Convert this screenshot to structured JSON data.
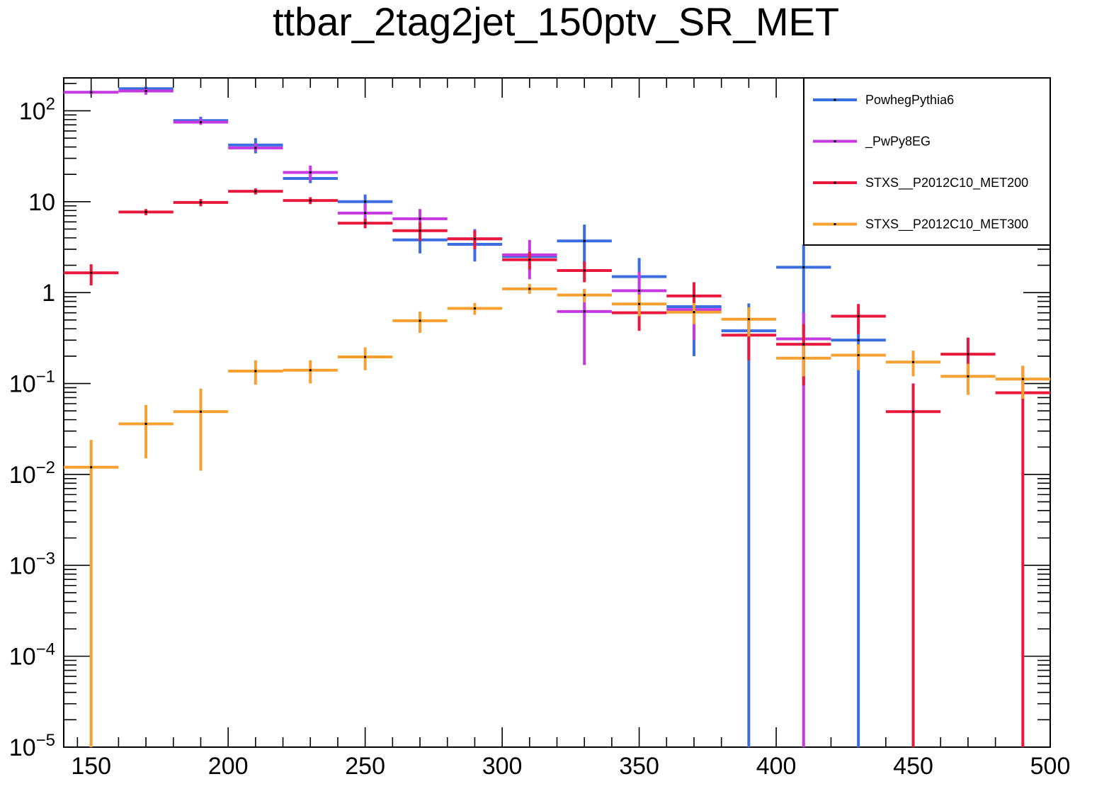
{
  "chart_data": {
    "type": "line",
    "title": "ttbar_2tag2jet_150ptv_SR_MET",
    "xlabel": "",
    "ylabel": "",
    "xlim": [
      140,
      500
    ],
    "ylim": [
      1e-05,
      230
    ],
    "ylog": true,
    "grid": false,
    "legend_position": "top-right",
    "bins": [
      [
        140,
        160
      ],
      [
        160,
        180
      ],
      [
        180,
        200
      ],
      [
        200,
        220
      ],
      [
        220,
        240
      ],
      [
        240,
        260
      ],
      [
        260,
        280
      ],
      [
        280,
        300
      ],
      [
        300,
        320
      ],
      [
        320,
        340
      ],
      [
        340,
        360
      ],
      [
        360,
        380
      ],
      [
        380,
        400
      ],
      [
        400,
        420
      ],
      [
        420,
        440
      ],
      [
        440,
        460
      ],
      [
        460,
        480
      ],
      [
        480,
        500
      ]
    ],
    "x_ticks": [
      {
        "v": 150,
        "label": "150"
      },
      {
        "v": 200,
        "label": "200"
      },
      {
        "v": 250,
        "label": "250"
      },
      {
        "v": 300,
        "label": "300"
      },
      {
        "v": 350,
        "label": "350"
      },
      {
        "v": 400,
        "label": "400"
      },
      {
        "v": 450,
        "label": "450"
      },
      {
        "v": 500,
        "label": "500"
      }
    ],
    "y_ticks": [
      {
        "v": 1e-05,
        "base": "10",
        "exp": "−5"
      },
      {
        "v": 0.0001,
        "base": "10",
        "exp": "−4"
      },
      {
        "v": 0.001,
        "base": "10",
        "exp": "−3"
      },
      {
        "v": 0.01,
        "base": "10",
        "exp": "−2"
      },
      {
        "v": 0.1,
        "base": "10",
        "exp": "−1"
      },
      {
        "v": 1,
        "base": "1",
        "exp": ""
      },
      {
        "v": 10,
        "base": "10",
        "exp": ""
      },
      {
        "v": 100,
        "base": "10",
        "exp": "2"
      }
    ],
    "series": [
      {
        "name": "PowhegPythia6",
        "color": "#3a6de0",
        "values": [
          null,
          175,
          78,
          42,
          18,
          10,
          3.8,
          3.4,
          2.5,
          3.7,
          1.5,
          0.7,
          0.38,
          1.9,
          0.3,
          null,
          null,
          null
        ],
        "err_low": [
          null,
          160,
          71,
          34,
          16,
          8,
          2.7,
          2.2,
          2.3,
          2.0,
          0.72,
          0.2,
          1e-05,
          0.37,
          1e-05,
          null,
          null,
          null
        ],
        "err_high": [
          null,
          185,
          86,
          50,
          21,
          12,
          5.0,
          5.0,
          2.8,
          5.6,
          2.4,
          1.1,
          0.76,
          3.4,
          0.5,
          null,
          null,
          null
        ]
      },
      {
        "name": "_PwPy8EG",
        "color": "#c43ae0",
        "values": [
          160,
          165,
          75,
          39,
          21,
          7.5,
          6.5,
          3.9,
          2.6,
          0.62,
          1.05,
          0.65,
          null,
          0.31,
          null,
          null,
          null,
          null
        ],
        "err_low": [
          152,
          150,
          70,
          36,
          17,
          5.7,
          5.0,
          3.2,
          1.4,
          0.16,
          0.55,
          0.3,
          null,
          1e-05,
          null,
          null,
          null,
          null
        ],
        "err_high": [
          168,
          175,
          82,
          44,
          25,
          9.5,
          8.3,
          4.9,
          3.8,
          1.1,
          1.7,
          1.2,
          null,
          0.6,
          null,
          null,
          null,
          null
        ]
      },
      {
        "name": "STXS__P2012C10_MET200",
        "color": "#e8193c",
        "values": [
          1.65,
          7.7,
          9.8,
          13,
          10.3,
          5.8,
          4.8,
          3.9,
          2.3,
          1.75,
          0.6,
          0.92,
          0.34,
          0.27,
          0.55,
          0.049,
          0.21,
          0.079
        ],
        "err_low": [
          1.2,
          7.1,
          8.9,
          12,
          9.4,
          5.1,
          3.7,
          3.0,
          1.8,
          1.3,
          0.38,
          0.62,
          0.18,
          0.095,
          0.35,
          1e-05,
          0.13,
          3e-06
        ],
        "err_high": [
          2.05,
          8.3,
          10.7,
          14,
          11.2,
          6.5,
          5.9,
          4.8,
          2.8,
          2.2,
          0.8,
          1.3,
          0.5,
          0.45,
          0.75,
          0.1,
          0.32,
          0.155
        ]
      },
      {
        "name": "STXS__P2012C10_MET300",
        "color": "#f5a030",
        "values": [
          0.012,
          0.036,
          0.049,
          0.137,
          0.14,
          0.196,
          0.49,
          0.67,
          1.1,
          0.94,
          0.75,
          0.61,
          0.51,
          0.19,
          0.205,
          0.172,
          0.12,
          0.112
        ],
        "err_low": [
          1e-05,
          0.015,
          0.011,
          0.097,
          0.1,
          0.14,
          0.36,
          0.57,
          0.97,
          0.78,
          0.55,
          0.45,
          0.33,
          0.12,
          0.14,
          0.12,
          0.075,
          0.068
        ],
        "err_high": [
          0.024,
          0.058,
          0.088,
          0.18,
          0.18,
          0.25,
          0.62,
          0.77,
          1.25,
          1.1,
          0.95,
          0.77,
          0.69,
          0.26,
          0.27,
          0.23,
          0.165,
          0.157
        ]
      }
    ]
  }
}
